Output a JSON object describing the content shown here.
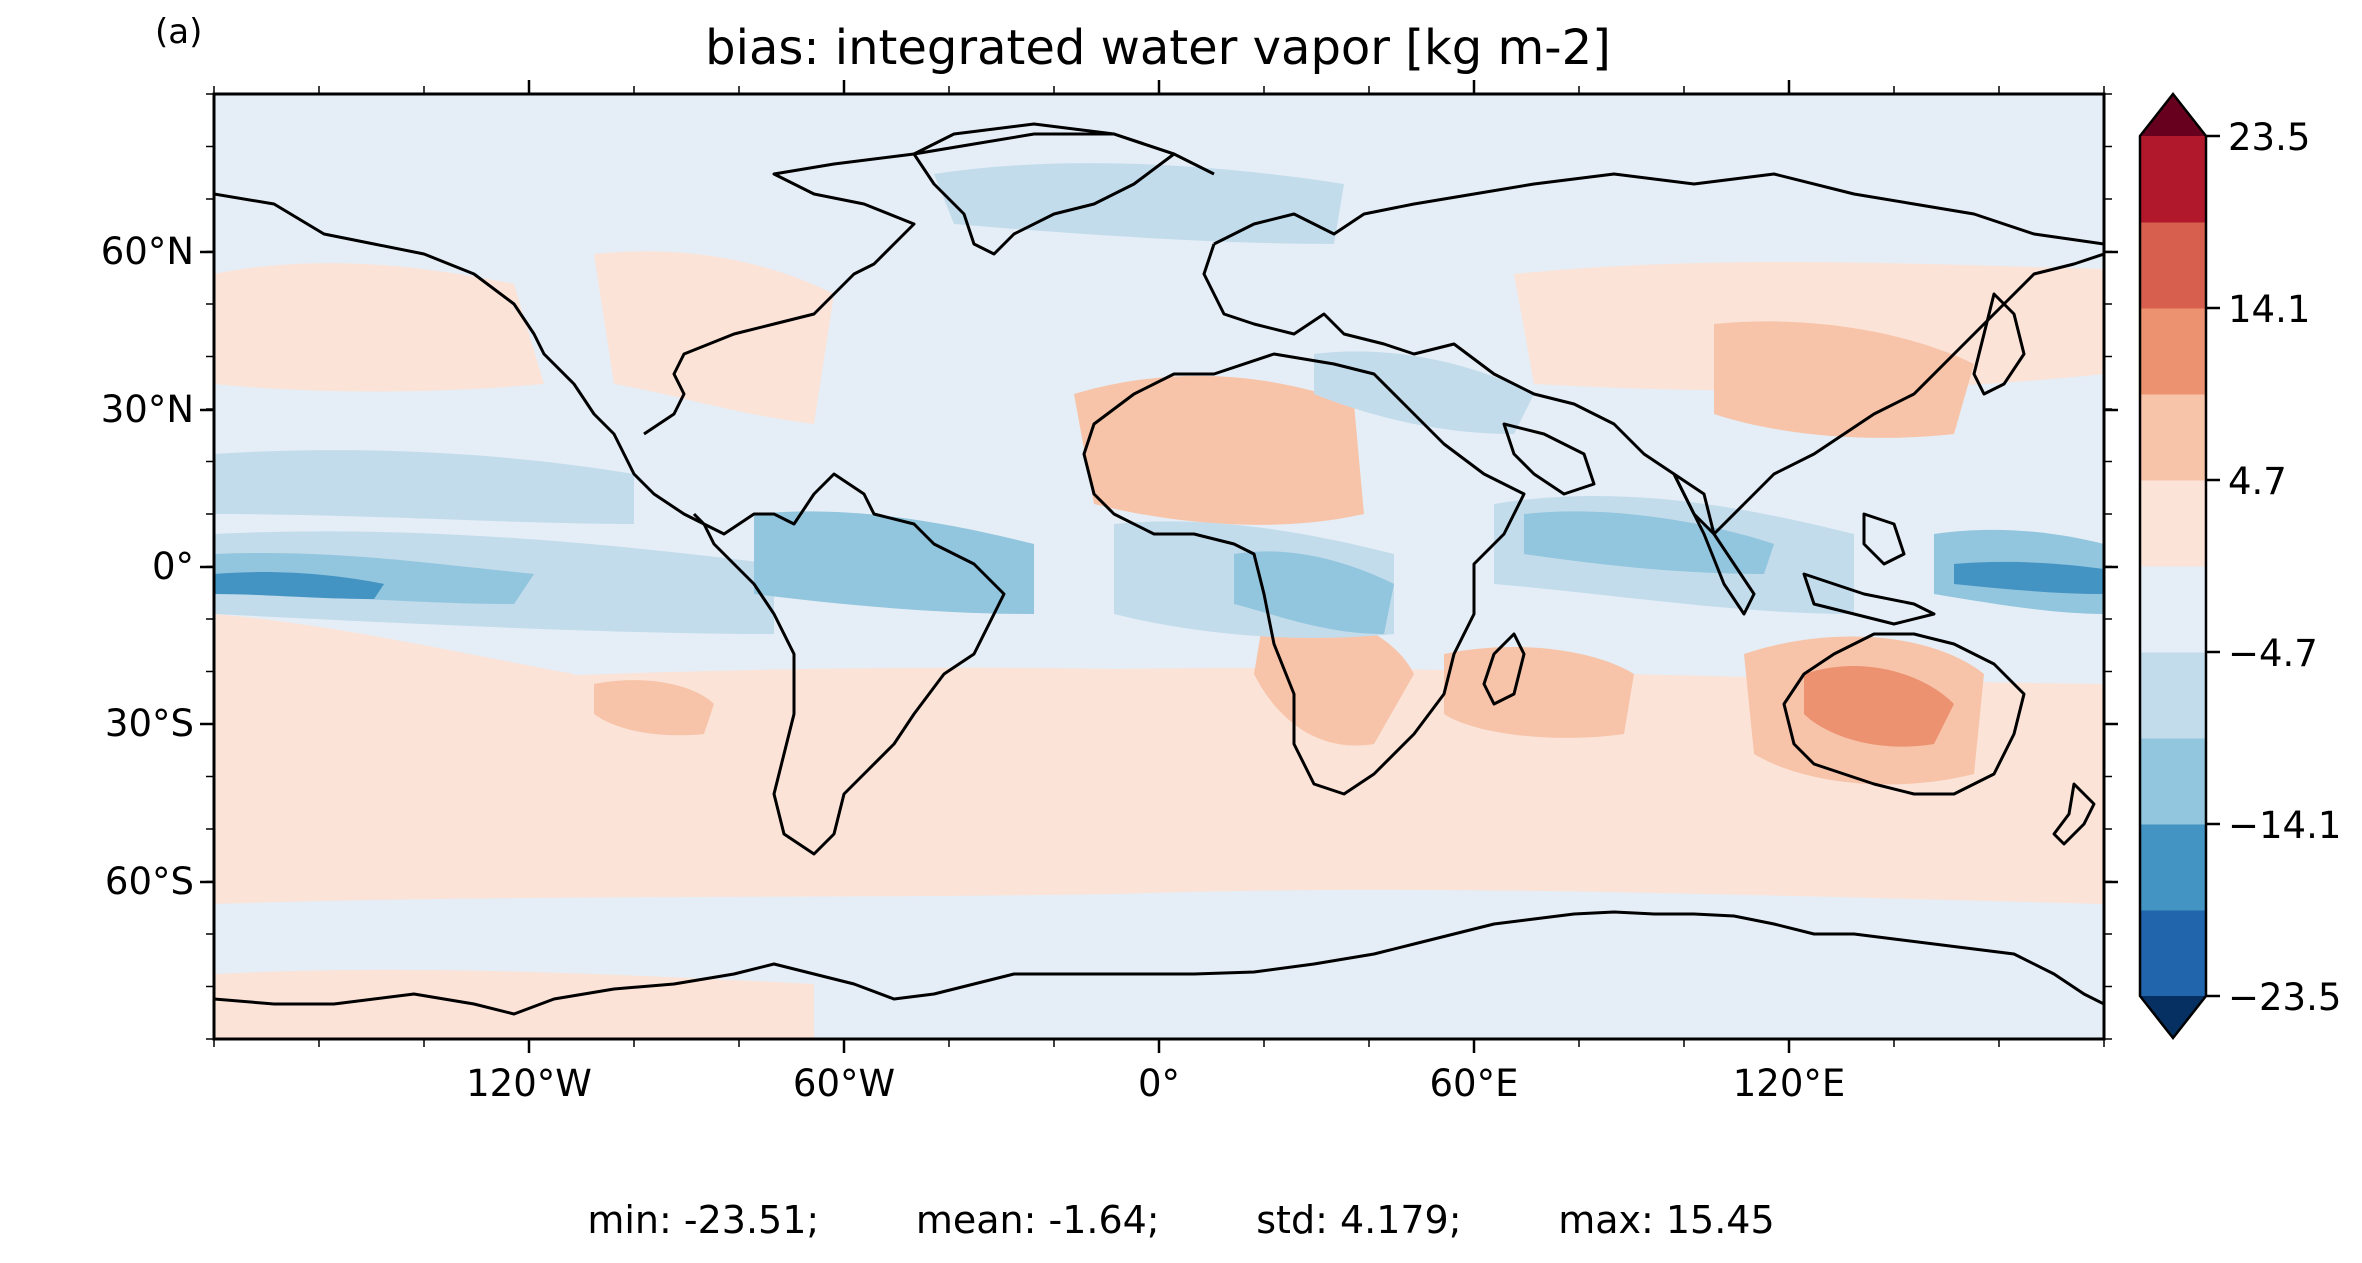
{
  "panel_label": "(a)",
  "title": "bias: integrated water vapor [kg m-2]",
  "colors": {
    "bins": [
      "#053061",
      "#2166ac",
      "#4393c3",
      "#92c5de",
      "#c3dcec",
      "#e5eef6",
      "#fbe3d8",
      "#f7c4a9",
      "#ec9271",
      "#d6604d",
      "#b2182b",
      "#67001f"
    ],
    "coastline": "#000000"
  },
  "chart_data": {
    "type": "heatmap",
    "title": "bias: integrated water vapor [kg m-2]",
    "projection": "PlateCarree",
    "x_ticks": [
      "120°W",
      "60°W",
      "0°",
      "60°E",
      "120°E"
    ],
    "y_ticks": [
      "60°N",
      "30°N",
      "0°",
      "30°S",
      "60°S"
    ],
    "xlim": [
      -180,
      180
    ],
    "ylim": [
      -90,
      90
    ],
    "colorbar": {
      "levels": [
        -23.5,
        -18.8,
        -14.1,
        -9.4,
        -4.7,
        0,
        4.7,
        9.4,
        14.1,
        18.8,
        23.5
      ],
      "tick_labels": [
        "23.5",
        "14.1",
        "4.7",
        "−4.7",
        "−14.1",
        "−23.5"
      ],
      "extend": "both"
    },
    "stats": {
      "min": "min: -23.51;",
      "mean": "mean: -1.64;",
      "std": "std: 4.179;",
      "max": "max: 15.45"
    }
  }
}
